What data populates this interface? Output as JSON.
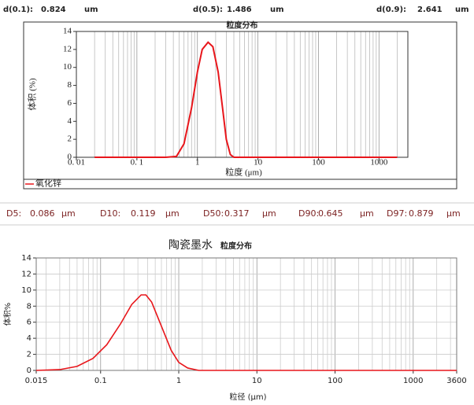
{
  "header": {
    "items": [
      {
        "label": "d(0.1):",
        "value": 0.824,
        "unit": "um"
      },
      {
        "label": "d(0.5):",
        "value": 1.486,
        "unit": "um"
      },
      {
        "label": "d(0.9):",
        "value": 2.641,
        "unit": "um"
      }
    ]
  },
  "stats": {
    "items": [
      {
        "label": "D5:",
        "value": 0.086,
        "unit": "μm"
      },
      {
        "label": "D10:",
        "value": 0.119,
        "unit": "μm"
      },
      {
        "label": "D50:",
        "value": 0.317,
        "unit": "μm"
      },
      {
        "label": "D90:",
        "value": 0.645,
        "unit": "μm"
      },
      {
        "label": "D97:",
        "value": 0.879,
        "unit": "μm"
      }
    ]
  },
  "chart_data": [
    {
      "type": "line",
      "title": "粒度分布",
      "x_label": "粒度 (μm)",
      "y_label": "体积 (%)",
      "xscale": "log",
      "xlim": [
        0.01,
        3000
      ],
      "ylim": [
        0,
        14
      ],
      "xticks": [
        {
          "value": 0.01,
          "label": "0. 01"
        },
        {
          "value": 0.1,
          "label": "0. 1"
        },
        1,
        10,
        100,
        1000
      ],
      "yticks": [
        0,
        2,
        4,
        6,
        8,
        10,
        12,
        14
      ],
      "ygrid": false,
      "xgrid": true,
      "series": [
        {
          "name": "氧化锌",
          "color": "#e8161b",
          "x": [
            0.02,
            0.1,
            0.3,
            0.45,
            0.6,
            0.8,
            1.0,
            1.2,
            1.5,
            1.8,
            2.2,
            2.6,
            3.0,
            3.5,
            4.0,
            10,
            100,
            2000
          ],
          "values": [
            0,
            0,
            0,
            0.1,
            1.5,
            5.5,
            9.5,
            12,
            12.8,
            12.3,
            9.5,
            5.5,
            2,
            0.3,
            0,
            0,
            0,
            0
          ]
        }
      ]
    },
    {
      "type": "line",
      "title": "陶瓷墨水",
      "subtitle": "粒度分布",
      "x_label": "粒径 (μm)",
      "y_label": "体积%",
      "xscale": "log",
      "xlim": [
        0.015,
        3600
      ],
      "ylim": [
        0,
        14
      ],
      "xticks": [
        0.015,
        0.1,
        1,
        10,
        100,
        1000,
        3600
      ],
      "yticks": [
        0,
        2,
        4,
        6,
        8,
        10,
        12,
        14
      ],
      "ygrid": true,
      "xgrid": true,
      "series": [
        {
          "color": "#e8161b",
          "x": [
            0.015,
            0.03,
            0.05,
            0.08,
            0.12,
            0.18,
            0.25,
            0.33,
            0.38,
            0.45,
            0.6,
            0.8,
            1.0,
            1.3,
            1.8,
            10,
            100,
            3600
          ],
          "values": [
            0,
            0.1,
            0.5,
            1.5,
            3.2,
            5.8,
            8.2,
            9.4,
            9.4,
            8.5,
            5.5,
            2.5,
            1.0,
            0.3,
            0,
            0,
            0,
            0
          ]
        }
      ]
    }
  ]
}
